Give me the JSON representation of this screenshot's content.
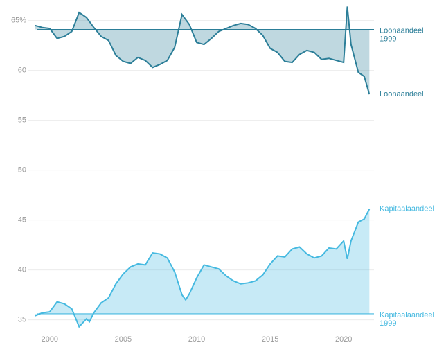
{
  "chart_data": {
    "type": "line",
    "xlim": [
      1998.5,
      2022.3
    ],
    "xticks": [
      2000,
      2005,
      2010,
      2015,
      2020
    ],
    "ylim": [
      34,
      66.5
    ],
    "yticks": [
      35,
      40,
      45,
      50,
      55,
      60,
      {
        "value": 65,
        "label": "65%"
      }
    ],
    "grid": true,
    "series": [
      {
        "name": "Loonaandeel",
        "color": "#2b7e98",
        "x": [
          1999.0,
          1999.5,
          2000.0,
          2000.5,
          2001.0,
          2001.5,
          2002.0,
          2002.5,
          2003.0,
          2003.5,
          2004.0,
          2004.5,
          2005.0,
          2005.5,
          2006.0,
          2006.5,
          2007.0,
          2007.5,
          2008.0,
          2008.5,
          2009.0,
          2009.5,
          2010.0,
          2010.5,
          2011.0,
          2011.5,
          2012.0,
          2012.5,
          2013.0,
          2013.5,
          2014.0,
          2014.5,
          2015.0,
          2015.5,
          2016.0,
          2016.5,
          2017.0,
          2017.5,
          2018.0,
          2018.5,
          2019.0,
          2019.5,
          2020.0,
          2020.25,
          2020.5,
          2021.0,
          2021.4,
          2021.75
        ],
        "values": [
          64.5,
          64.3,
          64.2,
          63.2,
          63.4,
          63.9,
          65.8,
          65.3,
          64.3,
          63.4,
          63.0,
          61.5,
          60.9,
          60.7,
          61.3,
          61.0,
          60.3,
          60.6,
          61.0,
          62.3,
          65.6,
          64.6,
          62.8,
          62.6,
          63.2,
          63.9,
          64.2,
          64.5,
          64.7,
          64.6,
          64.2,
          63.5,
          62.2,
          61.8,
          60.9,
          60.8,
          61.6,
          62.0,
          61.8,
          61.1,
          61.2,
          61.0,
          60.8,
          66.4,
          62.6,
          59.8,
          59.4,
          57.6
        ],
        "reference": {
          "value": 64.1,
          "label": [
            "Loonaandeel",
            "1999"
          ]
        }
      },
      {
        "name": "Kapitaalaandeel",
        "color": "#45b9e0",
        "x": [
          1999.0,
          1999.5,
          2000.0,
          2000.5,
          2001.0,
          2001.5,
          2002.0,
          2002.5,
          2002.7,
          2003.0,
          2003.5,
          2004.0,
          2004.5,
          2005.0,
          2005.5,
          2006.0,
          2006.5,
          2007.0,
          2007.5,
          2008.0,
          2008.5,
          2009.0,
          2009.25,
          2009.5,
          2010.0,
          2010.5,
          2011.0,
          2011.5,
          2012.0,
          2012.5,
          2013.0,
          2013.5,
          2014.0,
          2014.5,
          2015.0,
          2015.5,
          2016.0,
          2016.5,
          2017.0,
          2017.5,
          2018.0,
          2018.5,
          2019.0,
          2019.5,
          2020.0,
          2020.25,
          2020.5,
          2021.0,
          2021.4,
          2021.75
        ],
        "values": [
          35.4,
          35.7,
          35.8,
          36.8,
          36.6,
          36.1,
          34.3,
          35.1,
          34.8,
          35.7,
          36.7,
          37.2,
          38.6,
          39.6,
          40.3,
          40.6,
          40.5,
          41.7,
          41.6,
          41.2,
          39.8,
          37.5,
          37.0,
          37.6,
          39.2,
          40.5,
          40.3,
          40.1,
          39.4,
          38.9,
          38.6,
          38.7,
          38.9,
          39.5,
          40.6,
          41.4,
          41.3,
          42.1,
          42.3,
          41.6,
          41.2,
          41.4,
          42.2,
          42.1,
          42.9,
          41.1,
          42.9,
          44.8,
          45.1,
          46.1
        ],
        "reference": {
          "value": 35.6,
          "label": [
            "Kapitaalaandeel",
            "1999"
          ]
        }
      }
    ]
  }
}
